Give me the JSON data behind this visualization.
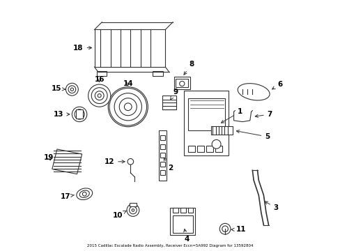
{
  "title": "2015 Cadillac Escalade Radio Assembly, Receiver Eccn=5A992 Diagram for 13592804",
  "bg_color": "#ffffff",
  "line_color": "#333333",
  "label_color": "#000000",
  "figsize": [
    4.89,
    3.6
  ],
  "dpi": 100
}
